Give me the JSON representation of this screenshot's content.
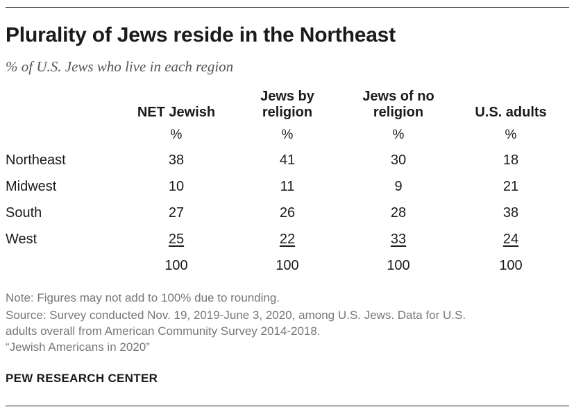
{
  "title": "Plurality of Jews reside in the Northeast",
  "subtitle": "% of U.S. Jews who live in each region",
  "chart_data": {
    "type": "table",
    "title": "Plurality of Jews reside in the Northeast",
    "subtitle": "% of U.S. Jews who live in each region",
    "columns": [
      {
        "label": "NET Jewish",
        "unit": "%"
      },
      {
        "label": "Jews by\nreligion",
        "unit": "%"
      },
      {
        "label": "Jews of no\nreligion",
        "unit": "%"
      },
      {
        "label": "U.S. adults",
        "unit": "%"
      }
    ],
    "rows": [
      {
        "label": "Northeast",
        "values": [
          38,
          41,
          30,
          18
        ]
      },
      {
        "label": "Midwest",
        "values": [
          10,
          11,
          9,
          21
        ]
      },
      {
        "label": "South",
        "values": [
          27,
          26,
          28,
          38
        ]
      },
      {
        "label": "West",
        "values": [
          25,
          22,
          33,
          24
        ]
      }
    ],
    "totals": [
      100,
      100,
      100,
      100
    ]
  },
  "notes": {
    "note": "Note: Figures may not add to 100% due to rounding.",
    "source_line1": "Source: Survey conducted Nov. 19, 2019-June 3, 2020, among U.S. Jews. Data for U.S.",
    "source_line2": "adults overall from American Community Survey 2014-2018.",
    "report": "“Jewish Americans in 2020”"
  },
  "brand": "PEW RESEARCH CENTER"
}
